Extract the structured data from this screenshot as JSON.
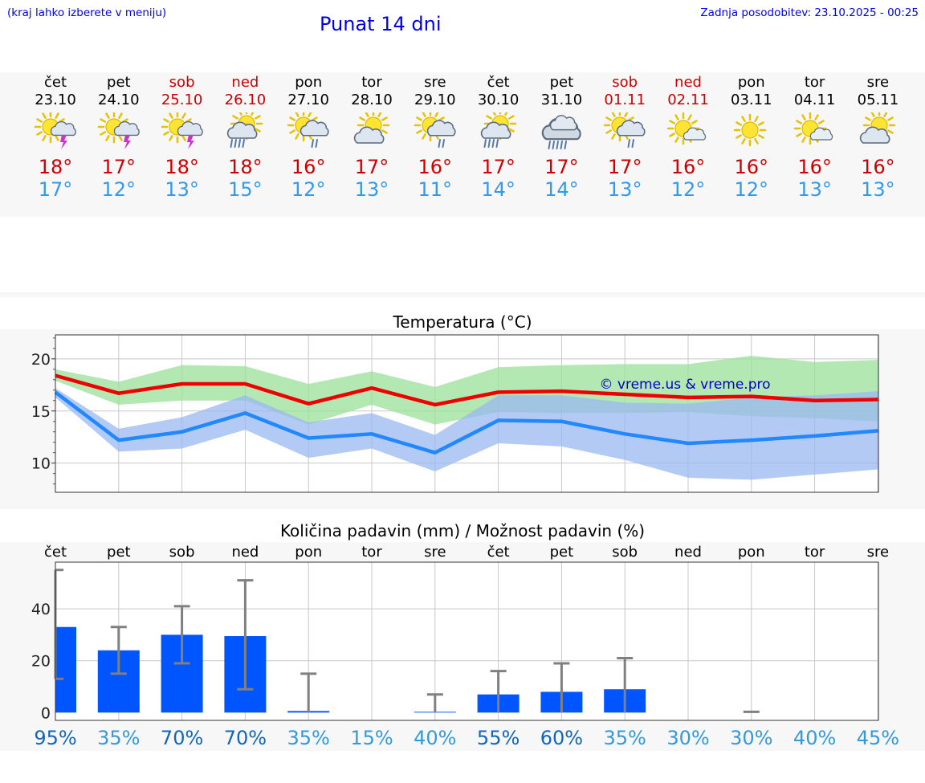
{
  "header": {
    "menu_hint": "(kraj lahko izberete v meniju)",
    "title": "Punat 14 dni",
    "updated": "Zadnja posodobitev: 23.10.2025 - 00:25"
  },
  "days": [
    {
      "name": "čet",
      "date": "23.10",
      "icon": "sun-cloud-thunder-icon",
      "tmax": "18°",
      "tmin": "17°",
      "weekend": false
    },
    {
      "name": "pet",
      "date": "24.10",
      "icon": "sun-cloud-thunder-icon",
      "tmax": "17°",
      "tmin": "12°",
      "weekend": false
    },
    {
      "name": "sob",
      "date": "25.10",
      "icon": "sun-cloud-thunder-icon",
      "tmax": "18°",
      "tmin": "13°",
      "weekend": true
    },
    {
      "name": "ned",
      "date": "26.10",
      "icon": "sun-cloud-heavy-rain-icon",
      "tmax": "18°",
      "tmin": "15°",
      "weekend": true
    },
    {
      "name": "pon",
      "date": "27.10",
      "icon": "sun-cloud-rain-icon",
      "tmax": "16°",
      "tmin": "12°",
      "weekend": false
    },
    {
      "name": "tor",
      "date": "28.10",
      "icon": "sun-cloud-icon",
      "tmax": "17°",
      "tmin": "13°",
      "weekend": false
    },
    {
      "name": "sre",
      "date": "29.10",
      "icon": "sun-cloud-rain-icon",
      "tmax": "16°",
      "tmin": "11°",
      "weekend": false
    },
    {
      "name": "čet",
      "date": "30.10",
      "icon": "sun-cloud-heavy-rain-icon",
      "tmax": "17°",
      "tmin": "14°",
      "weekend": false
    },
    {
      "name": "pet",
      "date": "31.10",
      "icon": "cloud-heavy-rain-icon",
      "tmax": "17°",
      "tmin": "14°",
      "weekend": false
    },
    {
      "name": "sob",
      "date": "01.11",
      "icon": "sun-cloud-rain-icon",
      "tmax": "17°",
      "tmin": "13°",
      "weekend": true
    },
    {
      "name": "ned",
      "date": "02.11",
      "icon": "sun-small-cloud-icon",
      "tmax": "16°",
      "tmin": "12°",
      "weekend": true
    },
    {
      "name": "pon",
      "date": "03.11",
      "icon": "sun-icon",
      "tmax": "16°",
      "tmin": "12°",
      "weekend": false
    },
    {
      "name": "tor",
      "date": "04.11",
      "icon": "sun-small-cloud-icon",
      "tmax": "16°",
      "tmin": "13°",
      "weekend": false
    },
    {
      "name": "sre",
      "date": "05.11",
      "icon": "sun-cloud-icon",
      "tmax": "16°",
      "tmin": "13°",
      "weekend": false
    }
  ],
  "colors": {
    "max_line": "#ee0000",
    "min_line": "#2288ff",
    "max_band": "#99e099",
    "min_band": "#99b8f0",
    "bar": "#0055ff",
    "error": "#808080",
    "pct_high": "#1166bb",
    "pct_low": "#3399dd"
  },
  "chart_data": [
    {
      "type": "line",
      "title": "Temperatura (°C)",
      "watermark": "© vreme.us & vreme.pro",
      "x": [
        "23.10",
        "24.10",
        "25.10",
        "26.10",
        "27.10",
        "28.10",
        "29.10",
        "30.10",
        "31.10",
        "01.11",
        "02.11",
        "03.11",
        "04.11",
        "05.11"
      ],
      "ylim": [
        7.2,
        22.3
      ],
      "yticks": [
        10,
        15,
        20
      ],
      "series": [
        {
          "values": [
            18.4,
            16.7,
            17.6,
            17.6,
            15.7,
            17.2,
            15.6,
            16.8,
            16.9,
            16.6,
            16.3,
            16.4,
            16.0,
            16.1
          ],
          "band_low": [
            17.9,
            15.6,
            16.0,
            16.0,
            13.7,
            15.6,
            13.7,
            14.9,
            14.8,
            14.8,
            14.9,
            14.5,
            14.3,
            14.0
          ],
          "band_high": [
            19.0,
            17.8,
            19.4,
            19.3,
            17.6,
            18.8,
            17.3,
            19.2,
            19.4,
            19.5,
            19.5,
            20.3,
            19.7,
            19.9
          ]
        },
        {
          "values": [
            16.8,
            12.2,
            13.0,
            14.8,
            12.4,
            12.8,
            11.0,
            14.1,
            14.0,
            12.8,
            11.9,
            12.2,
            12.6,
            13.1
          ],
          "band_low": [
            16.3,
            11.1,
            11.4,
            13.2,
            10.5,
            11.4,
            9.2,
            11.9,
            11.6,
            10.3,
            8.6,
            8.4,
            8.9,
            9.4
          ],
          "band_high": [
            17.2,
            13.3,
            14.4,
            16.5,
            13.9,
            14.8,
            12.7,
            16.5,
            16.5,
            15.8,
            15.7,
            16.3,
            16.5,
            16.9
          ]
        }
      ]
    },
    {
      "type": "bar",
      "title": "Količina padavin (mm) / Možnost padavin (%)",
      "categories": [
        "čet",
        "pet",
        "sob",
        "ned",
        "pon",
        "tor",
        "sre",
        "čet",
        "pet",
        "sob",
        "ned",
        "pon",
        "tor",
        "sre"
      ],
      "values": [
        33,
        24,
        30,
        29.5,
        0.6,
        0,
        0.3,
        7,
        8,
        9,
        0,
        0,
        0,
        0
      ],
      "err_low": [
        13,
        15,
        19,
        9,
        0,
        0,
        0,
        0,
        0,
        0,
        0,
        0,
        0,
        0
      ],
      "err_high": [
        55,
        33,
        41,
        51,
        15,
        0,
        7,
        16,
        19,
        21,
        0,
        0.3,
        0,
        0
      ],
      "ylim": [
        -3,
        58
      ],
      "yticks": [
        0,
        20,
        40
      ],
      "probability": [
        "95%",
        "35%",
        "70%",
        "70%",
        "35%",
        "15%",
        "40%",
        "55%",
        "60%",
        "35%",
        "30%",
        "30%",
        "40%",
        "45%"
      ],
      "probability_values": [
        95,
        35,
        70,
        70,
        35,
        15,
        40,
        55,
        60,
        35,
        30,
        30,
        40,
        45
      ]
    }
  ]
}
